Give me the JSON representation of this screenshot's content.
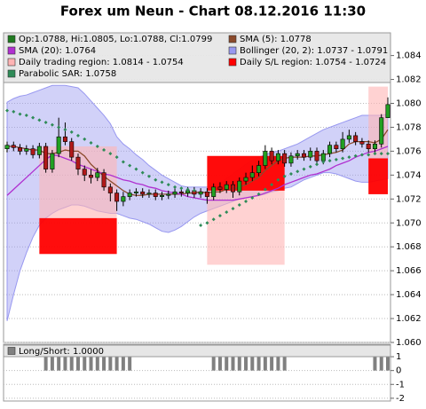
{
  "chart_data": [
    {
      "type": "candlestick",
      "title": "Forex um Neun - Chart 08.12.2016 11:30",
      "name": "Op:1.0788, Hi:1.0805, Lo:1.0788, Cl:1.0799",
      "color": "#1f7a1f",
      "up_color": "#22a022",
      "down_color": "#b01818",
      "open": [
        1.0762,
        1.0765,
        1.0763,
        1.076,
        1.0762,
        1.0757,
        1.0764,
        1.0745,
        1.0758,
        1.0772,
        1.0768,
        1.0755,
        1.0745,
        1.074,
        1.0738,
        1.0742,
        1.073,
        1.0725,
        1.0718,
        1.0722,
        1.0725,
        1.0726,
        1.0724,
        1.0725,
        1.0722,
        1.0723,
        1.0724,
        1.0726,
        1.0725,
        1.0727,
        1.0724,
        1.0726,
        1.0722,
        1.073,
        1.0728,
        1.0732,
        1.0726,
        1.0735,
        1.0738,
        1.0742,
        1.0748,
        1.076,
        1.0752,
        1.0758,
        1.075,
        1.0756,
        1.0758,
        1.0755,
        1.076,
        1.0752,
        1.0758,
        1.0765,
        1.0762,
        1.077,
        1.0773,
        1.0768,
        1.0766,
        1.0762,
        1.0766,
        1.0788
      ],
      "high": [
        1.0768,
        1.0768,
        1.0766,
        1.0765,
        1.0765,
        1.0767,
        1.0767,
        1.0761,
        1.0788,
        1.0784,
        1.0771,
        1.0758,
        1.0748,
        1.0745,
        1.0746,
        1.0745,
        1.0733,
        1.0728,
        1.0726,
        1.0728,
        1.0729,
        1.0729,
        1.0728,
        1.0728,
        1.0726,
        1.0727,
        1.0729,
        1.0729,
        1.073,
        1.073,
        1.0729,
        1.0729,
        1.0733,
        1.0734,
        1.0735,
        1.0735,
        1.0738,
        1.0742,
        1.0748,
        1.0752,
        1.0765,
        1.0763,
        1.0761,
        1.0761,
        1.0759,
        1.0761,
        1.0761,
        1.0763,
        1.0763,
        1.0761,
        1.0768,
        1.0768,
        1.0776,
        1.0778,
        1.0776,
        1.0771,
        1.0769,
        1.0769,
        1.0791,
        1.0805
      ],
      "low": [
        1.0759,
        1.076,
        1.0757,
        1.0757,
        1.0754,
        1.0754,
        1.0742,
        1.0742,
        1.0755,
        1.0765,
        1.0752,
        1.074,
        1.0735,
        1.0733,
        1.0735,
        1.0727,
        1.0718,
        1.071,
        1.0714,
        1.0719,
        1.0722,
        1.0721,
        1.0721,
        1.0719,
        1.0719,
        1.072,
        1.0721,
        1.0722,
        1.0722,
        1.0721,
        1.0721,
        1.0716,
        1.0719,
        1.0725,
        1.0725,
        1.0721,
        1.0723,
        1.0732,
        1.0735,
        1.0739,
        1.0745,
        1.0749,
        1.0749,
        1.0747,
        1.0747,
        1.0753,
        1.0752,
        1.0752,
        1.0749,
        1.0749,
        1.0755,
        1.0759,
        1.0759,
        1.0767,
        1.0765,
        1.0763,
        1.0759,
        1.0759,
        1.0763,
        1.0788
      ],
      "close": [
        1.0765,
        1.0763,
        1.076,
        1.0762,
        1.0757,
        1.0764,
        1.0745,
        1.0758,
        1.0772,
        1.0768,
        1.0755,
        1.0745,
        1.074,
        1.0738,
        1.0742,
        1.073,
        1.0725,
        1.0718,
        1.0722,
        1.0725,
        1.0726,
        1.0724,
        1.0725,
        1.0722,
        1.0723,
        1.0724,
        1.0726,
        1.0725,
        1.0727,
        1.0724,
        1.0726,
        1.0722,
        1.073,
        1.0728,
        1.0732,
        1.0726,
        1.0735,
        1.0738,
        1.0742,
        1.0748,
        1.076,
        1.0752,
        1.0758,
        1.075,
        1.0756,
        1.0758,
        1.0755,
        1.076,
        1.0752,
        1.0758,
        1.0765,
        1.0762,
        1.077,
        1.0773,
        1.0768,
        1.0766,
        1.0762,
        1.0766,
        1.0788,
        1.0799
      ],
      "series": [
        {
          "name": "SMA (5): 1.0778",
          "color": "#8b4a2b",
          "values": [
            1.0764,
            1.0764,
            1.0763,
            1.0762,
            1.0761,
            1.0761,
            1.0758,
            1.0758,
            1.0759,
            1.0761,
            1.076,
            1.076,
            1.0756,
            1.0749,
            1.0744,
            1.0739,
            1.0735,
            1.0731,
            1.0727,
            1.0724,
            1.0723,
            1.0723,
            1.0724,
            1.0724,
            1.0724,
            1.0724,
            1.0724,
            1.0724,
            1.0725,
            1.0725,
            1.0726,
            1.0725,
            1.0726,
            1.0726,
            1.0728,
            1.0728,
            1.073,
            1.0732,
            1.0735,
            1.0738,
            1.0744,
            1.0748,
            1.0752,
            1.0754,
            1.0755,
            1.0755,
            1.0755,
            1.0756,
            1.0756,
            1.0757,
            1.0758,
            1.0759,
            1.0761,
            1.0766,
            1.0768,
            1.0768,
            1.0768,
            1.0767,
            1.077,
            1.0778
          ]
        },
        {
          "name": "SMA (20): 1.0764",
          "color": "#b030d0",
          "values": [
            1.0723,
            1.0728,
            1.0733,
            1.0738,
            1.0743,
            1.0748,
            1.0753,
            1.0757,
            1.0756,
            1.0754,
            1.0752,
            1.0749,
            1.0747,
            1.0745,
            1.0743,
            1.0741,
            1.074,
            1.0738,
            1.0736,
            1.0735,
            1.0733,
            1.0732,
            1.073,
            1.0729,
            1.0727,
            1.0726,
            1.0725,
            1.0724,
            1.0722,
            1.0721,
            1.072,
            1.0719,
            1.0719,
            1.0719,
            1.0719,
            1.0719,
            1.072,
            1.0721,
            1.0722,
            1.0723,
            1.0725,
            1.0727,
            1.0729,
            1.0732,
            1.0734,
            1.0736,
            1.0738,
            1.074,
            1.0741,
            1.0743,
            1.0745,
            1.0748,
            1.075,
            1.0752,
            1.0755,
            1.0757,
            1.0759,
            1.076,
            1.0762,
            1.0764
          ]
        },
        {
          "name": "Bollinger (20, 2): 1.0737 - 1.0791",
          "color": "#9898f0",
          "upper": [
            1.0801,
            1.0804,
            1.0806,
            1.0807,
            1.0809,
            1.0811,
            1.0813,
            1.0815,
            1.0815,
            1.0815,
            1.0814,
            1.0813,
            1.0808,
            1.0802,
            1.0796,
            1.079,
            1.0783,
            1.0772,
            1.0766,
            1.0762,
            1.0757,
            1.0753,
            1.0748,
            1.0744,
            1.074,
            1.0737,
            1.0734,
            1.0731,
            1.073,
            1.073,
            1.073,
            1.073,
            1.0731,
            1.0733,
            1.0737,
            1.0741,
            1.0745,
            1.0749,
            1.0752,
            1.0755,
            1.0757,
            1.0759,
            1.076,
            1.0762,
            1.0764,
            1.0766,
            1.0769,
            1.0772,
            1.0775,
            1.0778,
            1.078,
            1.0782,
            1.0784,
            1.0786,
            1.0788,
            1.079,
            1.079,
            1.079,
            1.079,
            1.0791
          ],
          "lower": [
            1.0618,
            1.064,
            1.066,
            1.0675,
            1.0688,
            1.0698,
            1.0704,
            1.0708,
            1.0711,
            1.0713,
            1.0715,
            1.0715,
            1.0714,
            1.0712,
            1.071,
            1.0709,
            1.0708,
            1.0708,
            1.0706,
            1.0704,
            1.0703,
            1.0701,
            1.0699,
            1.0696,
            1.0693,
            1.0692,
            1.0694,
            1.0697,
            1.0701,
            1.0705,
            1.0708,
            1.071,
            1.0712,
            1.0714,
            1.0716,
            1.0718,
            1.072,
            1.0721,
            1.0722,
            1.0723,
            1.0724,
            1.0726,
            1.0727,
            1.0729,
            1.073,
            1.0733,
            1.0736,
            1.0738,
            1.074,
            1.0742,
            1.0742,
            1.0741,
            1.0739,
            1.0737,
            1.0735,
            1.0734,
            1.0734,
            1.0735,
            1.0736,
            1.0737
          ]
        },
        {
          "name": "Parabolic SAR: 1.0758",
          "color": "#2e8b57",
          "values": [
            1.0794,
            1.0793,
            1.0791,
            1.079,
            1.0788,
            1.0786,
            1.0784,
            1.0782,
            1.078,
            1.0778,
            1.0776,
            1.0773,
            1.077,
            1.0767,
            1.0764,
            1.0761,
            1.0758,
            1.0755,
            1.0751,
            1.0748,
            1.0745,
            1.0742,
            1.0739,
            1.0736,
            1.0734,
            1.0732,
            1.073,
            1.0729,
            1.0728,
            1.0727,
            1.0698,
            1.07,
            1.0703,
            1.0706,
            1.0709,
            1.0712,
            1.0715,
            1.0718,
            1.0721,
            1.0724,
            1.0728,
            1.0732,
            1.0736,
            1.0739,
            1.0741,
            1.0743,
            1.0745,
            1.0747,
            1.0749,
            1.0751,
            1.0752,
            1.0753,
            1.0754,
            1.0755,
            1.0756,
            1.0757,
            1.0757,
            1.0758,
            1.0758,
            1.0758
          ]
        }
      ],
      "regions": [
        {
          "name": "Daily trading region: 1.0814 - 1.0754",
          "color": "#ffb4b4",
          "spans": [
            {
              "from": 5,
              "to": 17,
              "low": 1.0704,
              "high": 1.0764
            },
            {
              "from": 31,
              "to": 43,
              "low": 1.0665,
              "high": 1.0756
            },
            {
              "from": 56,
              "to": 59,
              "low": 1.0754,
              "high": 1.0814
            }
          ]
        },
        {
          "name": "Daily S/L region: 1.0754 - 1.0724",
          "color": "#ff0000",
          "spans": [
            {
              "from": 5,
              "to": 17,
              "low": 1.0674,
              "high": 1.0704
            },
            {
              "from": 31,
              "to": 43,
              "low": 1.0727,
              "high": 1.0756
            },
            {
              "from": 56,
              "to": 59,
              "low": 1.0724,
              "high": 1.0754
            }
          ]
        }
      ],
      "ylim": [
        1.06,
        1.0859
      ],
      "yticks": [
        {
          "value": 1.06,
          "label": "1.060"
        },
        1.062,
        1.064,
        1.066,
        1.068,
        {
          "value": 1.07,
          "label": "1.070"
        },
        1.072,
        1.074,
        1.076,
        1.078,
        {
          "value": 1.08,
          "label": "1.080"
        },
        1.082,
        1.084
      ],
      "grid": true
    },
    {
      "type": "bar",
      "series": [
        {
          "name": "Long/Short: 1.0000",
          "color": "#808080",
          "values": [
            0,
            0,
            0,
            0,
            0,
            0,
            1,
            1,
            1,
            1,
            1,
            1,
            1,
            1,
            1,
            1,
            1,
            1,
            1,
            1,
            0,
            0,
            0,
            0,
            0,
            0,
            0,
            0,
            0,
            0,
            0,
            0,
            1,
            1,
            1,
            1,
            1,
            1,
            1,
            1,
            1,
            1,
            1,
            1,
            0,
            0,
            0,
            0,
            0,
            0,
            0,
            0,
            0,
            0,
            0,
            0,
            0,
            1,
            1,
            1
          ]
        }
      ],
      "ylim": [
        -2.2,
        1.9
      ],
      "yticks": [
        1,
        0,
        -1,
        -2
      ],
      "grid": true
    }
  ]
}
